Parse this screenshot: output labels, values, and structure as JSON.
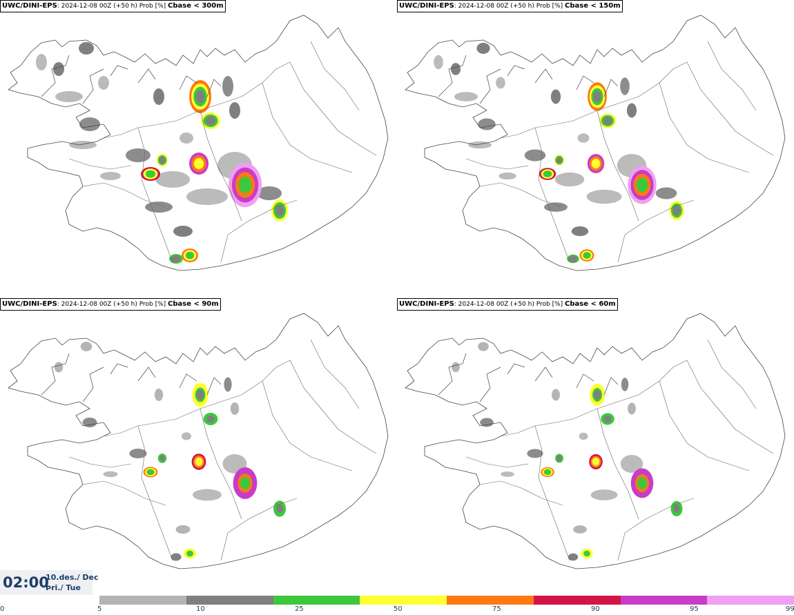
{
  "panels": [
    {
      "model": "UWC/DINI-EPS",
      "run_info": ": 2024-12-08 00Z (+50 h) Prob [%] ",
      "threshold": "Cbase < 300m"
    },
    {
      "model": "UWC/DINI-EPS",
      "run_info": ": 2024-12-08 00Z (+50 h) Prob [%] ",
      "threshold": "Cbase < 150m"
    },
    {
      "model": "UWC/DINI-EPS",
      "run_info": ": 2024-12-08 00Z (+50 h) Prob [%] ",
      "threshold": "Cbase < 90m"
    },
    {
      "model": "UWC/DINI-EPS",
      "run_info": ": 2024-12-08 00Z (+50 h) Prob [%] ",
      "threshold": "Cbase < 60m"
    }
  ],
  "time": {
    "clock": "02:00",
    "date": "10.des./ Dec",
    "day": "Þri./ Tue"
  },
  "legend": {
    "ticks": [
      "0",
      "5",
      "10",
      "25",
      "50",
      "75",
      "90",
      "95",
      "99"
    ],
    "colors": [
      "#b4b4b4",
      "#7f7f7f",
      "#3cc83c",
      "#ffff32",
      "#ff7814",
      "#d21446",
      "#c83cc8",
      "#f0a0f0"
    ]
  }
}
